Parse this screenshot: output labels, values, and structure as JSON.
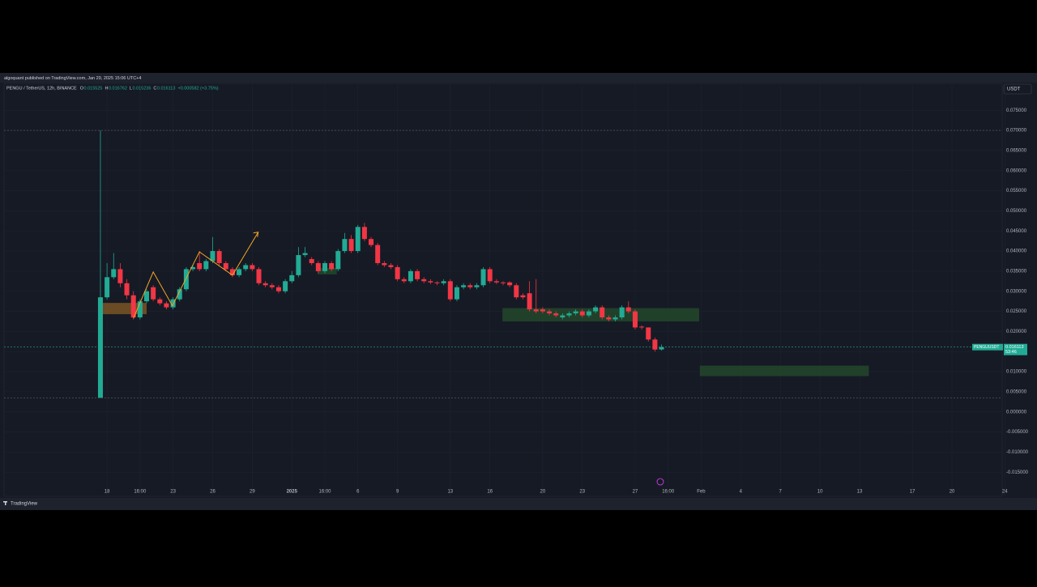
{
  "header": {
    "published": "algoquant published on TradingView.com, Jan 29, 2025 15:06 UTC+4"
  },
  "footer": {
    "logo": "TradingView"
  },
  "chart_data": {
    "type": "candlestick",
    "symbol": "PENGU / TetherUS, 12h, BINANCE",
    "ohlc_labels": [
      "O",
      "H",
      "L",
      "C"
    ],
    "change": "+0.000582 (+3.75%)",
    "currency": "USDT",
    "symbol_short": "PENGUUSDT",
    "countdown": "53:46",
    "up_color": "#22ab94",
    "down_color": "#f23645",
    "open": [
      0.0035,
      0.0285,
      0.0335,
      0.0355,
      0.032,
      0.029,
      0.0235,
      0.0275,
      0.031,
      0.028,
      0.027,
      0.026,
      0.028,
      0.0305,
      0.0355,
      0.037,
      0.0355,
      0.0375,
      0.04,
      0.037,
      0.0355,
      0.034,
      0.0355,
      0.0365,
      0.0355,
      0.032,
      0.0315,
      0.031,
      0.03,
      0.0325,
      0.034,
      0.039,
      0.038,
      0.037,
      0.035,
      0.037,
      0.0355,
      0.04,
      0.043,
      0.04,
      0.046,
      0.043,
      0.0415,
      0.037,
      0.0365,
      0.036,
      0.033,
      0.0325,
      0.035,
      0.033,
      0.0325,
      0.0322,
      0.032,
      0.0325,
      0.028,
      0.031,
      0.0315,
      0.031,
      0.0315,
      0.0355,
      0.0325,
      0.0322,
      0.0322,
      0.0315,
      0.029,
      0.0295,
      0.0255,
      0.0255,
      0.025,
      0.0245,
      0.0235,
      0.024,
      0.0245,
      0.025,
      0.024,
      0.025,
      0.026,
      0.0235,
      0.023,
      0.0235,
      0.026,
      0.025,
      0.0212,
      0.021,
      0.018,
      0.015525
    ],
    "high": [
      0.07,
      0.037,
      0.0395,
      0.037,
      0.033,
      0.03,
      0.028,
      0.0305,
      0.0315,
      0.0285,
      0.0275,
      0.0285,
      0.031,
      0.036,
      0.0365,
      0.04,
      0.038,
      0.0435,
      0.0405,
      0.0375,
      0.036,
      0.036,
      0.037,
      0.037,
      0.036,
      0.0325,
      0.032,
      0.0315,
      0.033,
      0.035,
      0.041,
      0.041,
      0.0385,
      0.0375,
      0.0375,
      0.0375,
      0.0405,
      0.0445,
      0.044,
      0.0465,
      0.047,
      0.0435,
      0.042,
      0.0375,
      0.037,
      0.0365,
      0.0335,
      0.0355,
      0.0355,
      0.0335,
      0.033,
      0.0325,
      0.033,
      0.033,
      0.0315,
      0.032,
      0.032,
      0.032,
      0.036,
      0.036,
      0.033,
      0.0325,
      0.0325,
      0.032,
      0.0295,
      0.0325,
      0.033,
      0.026,
      0.0255,
      0.025,
      0.0245,
      0.025,
      0.0255,
      0.0255,
      0.0255,
      0.0265,
      0.0265,
      0.024,
      0.024,
      0.0265,
      0.0275,
      0.0255,
      0.0215,
      0.021,
      0.0185,
      0.016762
    ],
    "low": [
      0.0035,
      0.028,
      0.033,
      0.031,
      0.028,
      0.023,
      0.023,
      0.027,
      0.0275,
      0.0265,
      0.0255,
      0.0255,
      0.0275,
      0.03,
      0.035,
      0.035,
      0.035,
      0.037,
      0.0365,
      0.035,
      0.0335,
      0.0335,
      0.035,
      0.035,
      0.0315,
      0.031,
      0.0305,
      0.0295,
      0.0295,
      0.032,
      0.0335,
      0.0385,
      0.0365,
      0.0345,
      0.0345,
      0.035,
      0.035,
      0.0395,
      0.0395,
      0.0395,
      0.0425,
      0.041,
      0.0365,
      0.036,
      0.0355,
      0.0325,
      0.032,
      0.032,
      0.0325,
      0.032,
      0.0318,
      0.0315,
      0.0315,
      0.0275,
      0.0275,
      0.0305,
      0.0305,
      0.0305,
      0.031,
      0.032,
      0.0318,
      0.0315,
      0.031,
      0.028,
      0.028,
      0.025,
      0.0245,
      0.0245,
      0.024,
      0.0235,
      0.023,
      0.0235,
      0.024,
      0.0235,
      0.0235,
      0.0245,
      0.023,
      0.0225,
      0.0225,
      0.023,
      0.0245,
      0.0205,
      0.0205,
      0.0175,
      0.015,
      0.015236
    ],
    "close": [
      0.0285,
      0.0335,
      0.0355,
      0.032,
      0.029,
      0.0235,
      0.0275,
      0.03,
      0.028,
      0.027,
      0.026,
      0.028,
      0.0305,
      0.0355,
      0.036,
      0.0355,
      0.0375,
      0.04,
      0.037,
      0.0355,
      0.034,
      0.0355,
      0.0365,
      0.0355,
      0.032,
      0.0315,
      0.031,
      0.03,
      0.0325,
      0.034,
      0.039,
      0.0395,
      0.037,
      0.035,
      0.037,
      0.0355,
      0.04,
      0.043,
      0.04,
      0.046,
      0.043,
      0.0415,
      0.037,
      0.0365,
      0.036,
      0.033,
      0.0325,
      0.035,
      0.033,
      0.0325,
      0.0322,
      0.032,
      0.0325,
      0.028,
      0.031,
      0.0315,
      0.031,
      0.0315,
      0.0355,
      0.0325,
      0.0322,
      0.032,
      0.0315,
      0.0285,
      0.0285,
      0.0255,
      0.025,
      0.025,
      0.0245,
      0.024,
      0.024,
      0.0245,
      0.025,
      0.024,
      0.025,
      0.026,
      0.0235,
      0.023,
      0.0235,
      0.026,
      0.025,
      0.021,
      0.021,
      0.018,
      0.0155,
      0.016113
    ],
    "xlim": [
      -14.6,
      136.6
    ],
    "xticks": [
      {
        "value": 1,
        "label": "18"
      },
      {
        "value": 6,
        "label": "16:00"
      },
      {
        "value": 11,
        "label": "23"
      },
      {
        "value": 17,
        "label": "26"
      },
      {
        "value": 23,
        "label": "29"
      },
      {
        "value": 29,
        "label": "2025"
      },
      {
        "value": 34,
        "label": "16:00"
      },
      {
        "value": 39,
        "label": "6"
      },
      {
        "value": 45,
        "label": "9"
      },
      {
        "value": 53,
        "label": "13"
      },
      {
        "value": 59,
        "label": "16"
      },
      {
        "value": 67,
        "label": "20"
      },
      {
        "value": 73,
        "label": "23"
      },
      {
        "value": 81,
        "label": "27"
      },
      {
        "value": 86,
        "label": "16:00"
      },
      {
        "value": 91,
        "label": "Feb"
      },
      {
        "value": 97,
        "label": "4"
      },
      {
        "value": 103,
        "label": "7"
      },
      {
        "value": 109,
        "label": "10"
      },
      {
        "value": 115,
        "label": "13"
      },
      {
        "value": 123,
        "label": "17"
      },
      {
        "value": 129,
        "label": "20"
      },
      {
        "value": 137,
        "label": "24"
      }
    ],
    "ylim": [
      -0.021,
      0.0817
    ],
    "yticks": [
      {
        "value": -0.015,
        "label": "-0.015000"
      },
      {
        "value": -0.01,
        "label": "-0.010000"
      },
      {
        "value": -0.005,
        "label": "-0.005000"
      },
      {
        "value": 0,
        "label": "0.000000"
      },
      {
        "value": 0.005,
        "label": "0.005000"
      },
      {
        "value": 0.01,
        "label": "0.010000"
      },
      {
        "value": 0.015,
        "label": "0.015000"
      },
      {
        "value": 0.02,
        "label": "0.020000"
      },
      {
        "value": 0.025,
        "label": "0.025000"
      },
      {
        "value": 0.03,
        "label": "0.030000"
      },
      {
        "value": 0.035,
        "label": "0.035000"
      },
      {
        "value": 0.04,
        "label": "0.040000"
      },
      {
        "value": 0.045,
        "label": "0.045000"
      },
      {
        "value": 0.05,
        "label": "0.050000"
      },
      {
        "value": 0.055,
        "label": "0.055000"
      },
      {
        "value": 0.06,
        "label": "0.060000"
      },
      {
        "value": 0.065,
        "label": "0.065000"
      },
      {
        "value": 0.07,
        "label": "0.070000"
      },
      {
        "value": 0.075,
        "label": "0.075000"
      }
    ],
    "grid": true,
    "zones": [
      {
        "x": [
          0,
          7
        ],
        "y": [
          0.0243,
          0.0271
        ],
        "color": "#7a5524"
      },
      {
        "x": [
          32.9,
          35.8
        ],
        "y": [
          0.0342,
          0.0358
        ],
        "color": "#1f4a2c"
      },
      {
        "x": [
          60.9,
          90.7
        ],
        "y": [
          0.0225,
          0.0258
        ],
        "color": "#23482b"
      },
      {
        "x": [
          90.8,
          116.4
        ],
        "y": [
          0.0089,
          0.0115
        ],
        "color": "#23482b"
      }
    ],
    "zigzag": {
      "x": [
        5,
        8,
        10.9,
        15,
        20,
        23.9
      ],
      "y": [
        0.0233,
        0.0348,
        0.0264,
        0.0398,
        0.034,
        0.0447
      ],
      "color": "#f5a623"
    }
  }
}
